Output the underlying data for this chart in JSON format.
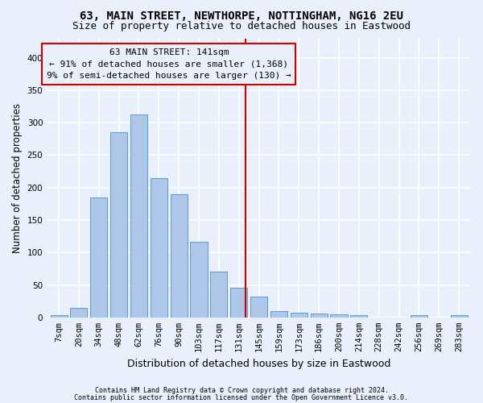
{
  "title1": "63, MAIN STREET, NEWTHORPE, NOTTINGHAM, NG16 2EU",
  "title2": "Size of property relative to detached houses in Eastwood",
  "xlabel": "Distribution of detached houses by size in Eastwood",
  "ylabel": "Number of detached properties",
  "footnote1": "Contains HM Land Registry data © Crown copyright and database right 2024.",
  "footnote2": "Contains public sector information licensed under the Open Government Licence v3.0.",
  "bar_labels": [
    "7sqm",
    "20sqm",
    "34sqm",
    "48sqm",
    "62sqm",
    "76sqm",
    "90sqm",
    "103sqm",
    "117sqm",
    "131sqm",
    "145sqm",
    "159sqm",
    "173sqm",
    "186sqm",
    "200sqm",
    "214sqm",
    "228sqm",
    "242sqm",
    "256sqm",
    "269sqm",
    "283sqm"
  ],
  "bar_values": [
    3,
    15,
    185,
    285,
    313,
    215,
    190,
    116,
    71,
    46,
    32,
    10,
    7,
    6,
    5,
    4,
    0,
    0,
    4,
    0,
    4
  ],
  "bar_color": "#aec6e8",
  "bar_edge_color": "#5b9bd5",
  "annotation_line1": "63 MAIN STREET: 141sqm",
  "annotation_line2": "← 91% of detached houses are smaller (1,368)",
  "annotation_line3": "9% of semi-detached houses are larger (130) →",
  "vline_x_index": 9.35,
  "vline_color": "#cc0000",
  "annotation_box_color": "#cc0000",
  "ylim": [
    0,
    430
  ],
  "yticks": [
    0,
    50,
    100,
    150,
    200,
    250,
    300,
    350,
    400
  ],
  "background_color": "#eaf0fb",
  "grid_color": "#ffffff",
  "title_fontsize": 10,
  "subtitle_fontsize": 9,
  "axis_label_fontsize": 9,
  "ylabel_fontsize": 8.5,
  "tick_fontsize": 7.5,
  "annotation_fontsize": 8,
  "footnote_fontsize": 6
}
